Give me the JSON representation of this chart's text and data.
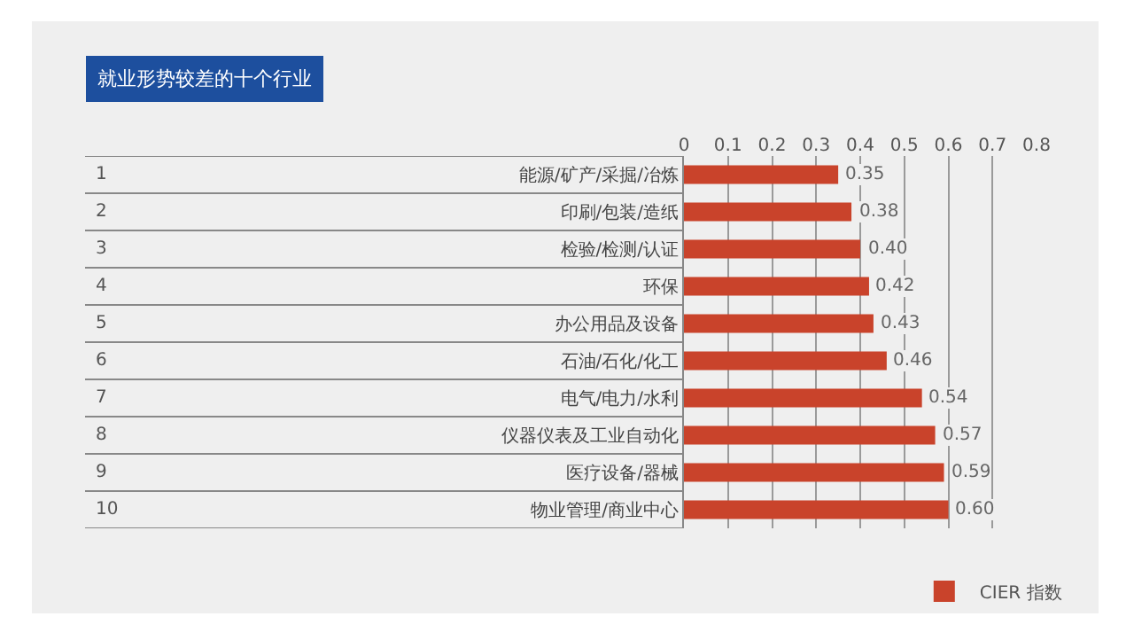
{
  "chart_data": {
    "type": "bar",
    "orientation": "horizontal",
    "title": "就业形势较差的十个行业",
    "categories": [
      "能源/矿产/采掘/冶炼",
      "印刷/包装/造纸",
      "检验/检测/认证",
      "环保",
      "办公用品及设备",
      "石油/石化/化工",
      "电气/电力/水利",
      "仪器仪表及工业自动化",
      "医疗设备/器械",
      "物业管理/商业中心"
    ],
    "series": [
      {
        "name": "CIER 指数",
        "color": "#c9432b",
        "values": [
          0.35,
          0.38,
          0.4,
          0.42,
          0.43,
          0.46,
          0.54,
          0.57,
          0.59,
          0.6
        ],
        "value_labels": [
          "0.35",
          "0.38",
          "0.40",
          "0.42",
          "0.43",
          "0.46",
          "0.54",
          "0.57",
          "0.59",
          "0.60"
        ]
      }
    ],
    "xlim": [
      0,
      0.8
    ],
    "xticks": [
      0,
      0.1,
      0.2,
      0.3,
      0.4,
      0.5,
      0.6,
      0.7,
      0.8
    ],
    "grid": "x",
    "legend": "bottom right",
    "annotations": [
      "1",
      "2",
      "3",
      "4",
      "5",
      "6",
      "7",
      "8",
      "9",
      "10"
    ]
  }
}
